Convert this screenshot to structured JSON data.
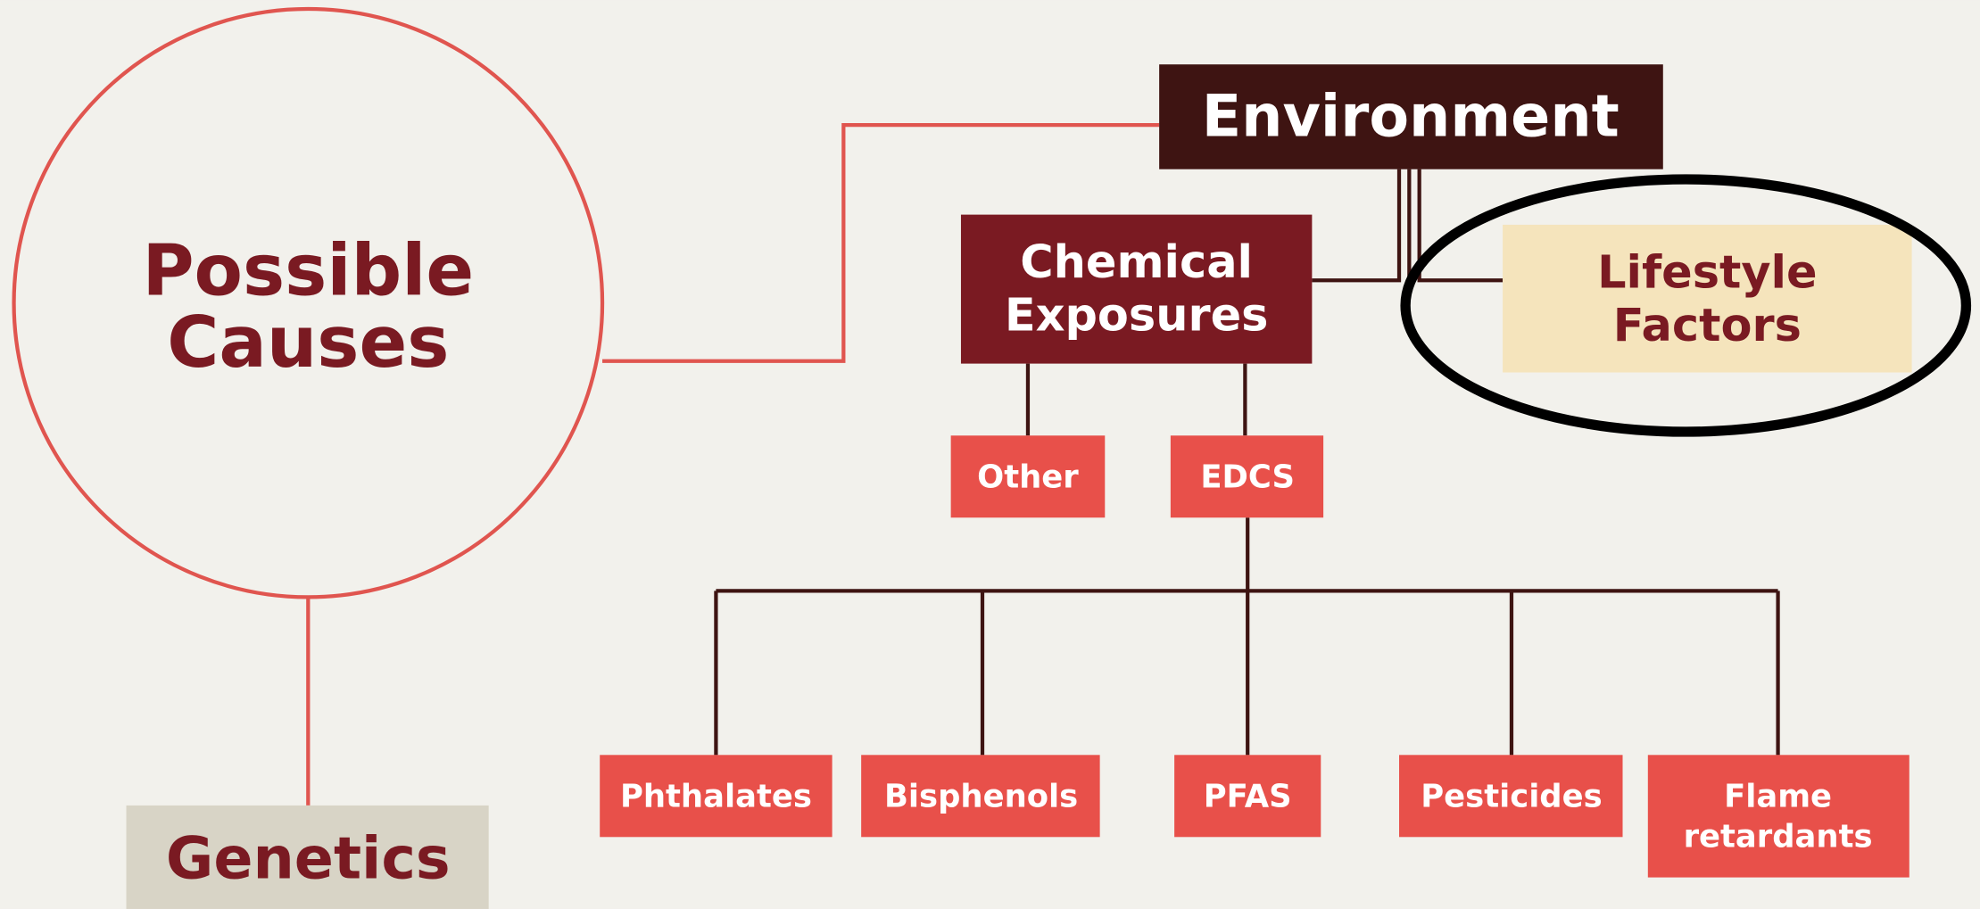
{
  "diagram": {
    "center": {
      "lines": [
        "Possible",
        "Causes"
      ]
    },
    "genetics": {
      "label": "Genetics"
    },
    "environment": {
      "label": "Environment"
    },
    "chemical": {
      "lines": [
        "Chemical",
        "Exposures"
      ]
    },
    "lifestyle": {
      "lines": [
        "Lifestyle",
        "Factors"
      ]
    },
    "other": {
      "label": "Other"
    },
    "edcs": {
      "label": "EDCS"
    },
    "leaves": [
      {
        "lines": [
          "Phthalates"
        ]
      },
      {
        "lines": [
          "Bisphenols"
        ]
      },
      {
        "lines": [
          "PFAS"
        ]
      },
      {
        "lines": [
          "Pesticides"
        ]
      },
      {
        "lines": [
          "Flame",
          "retardants"
        ]
      }
    ]
  }
}
